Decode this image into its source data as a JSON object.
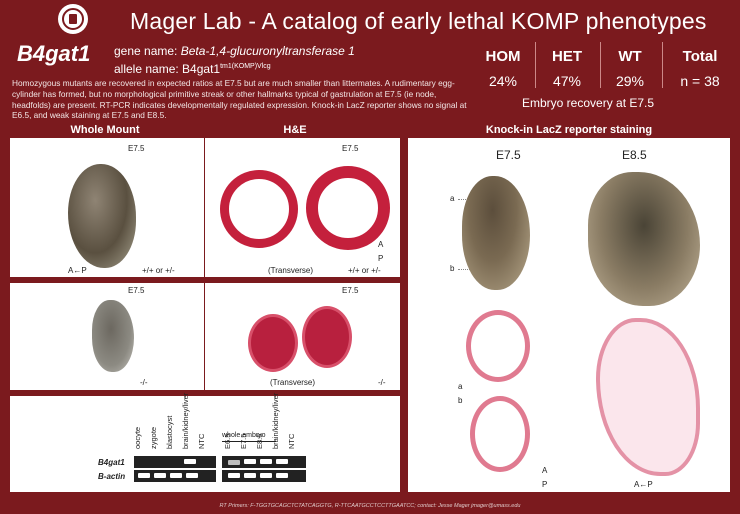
{
  "header": {
    "title": "Mager Lab - A catalog of early lethal KOMP phenotypes",
    "gene_symbol": "B4gat1",
    "gene_name_label": "gene name: ",
    "gene_name": "Beta-1,4-glucuronyltransferase 1",
    "allele_label": "allele name: B4gat1",
    "allele_sup": "tm1(KOMP)Vlcg",
    "description": "Homozygous mutants are recovered in expected ratios at E7.5 but are much smaller than littermates.  A rudimentary egg-cylinder has formed, but no morphological primitive streak or other hallmarks typical of gastrulation at E7.5 (ie node, headfolds) are present. RT-PCR indicates developmentally regulated expression.  Knock-in LacZ reporter shows no signal at E6.5, and weak staining at E7.5 and E8.5."
  },
  "stats": {
    "hom_label": "HOM",
    "hom_value": "24%",
    "het_label": "HET",
    "het_value": "47%",
    "wt_label": "WT",
    "wt_value": "29%",
    "total_label": "Total",
    "total_value": "n = 38",
    "recovery_caption": "Embryo recovery at E7.5"
  },
  "sections": {
    "whole_mount": "Whole Mount",
    "he": "H&E",
    "lacz": "Knock-in LacZ reporter staining"
  },
  "panels": {
    "wm_top_stage": "E7.5",
    "wm_top_axis": "A←P",
    "wm_top_genotype": "+/+ or +/-",
    "he_top_stage": "E7.5",
    "he_top_plane": "(Transverse)",
    "he_top_genotype": "+/+ or +/-",
    "he_top_axis_a": "A",
    "he_top_axis_p": "P",
    "wm_bot_stage": "E7.5",
    "wm_bot_genotype": "-/-",
    "he_bot_stage": "E7.5",
    "he_bot_plane": "(Transverse)",
    "he_bot_genotype": "-/-"
  },
  "gel": {
    "lanes1": [
      "oocyte",
      "zygote",
      "blastocyst",
      "brain/kidney/liver",
      "NTC"
    ],
    "group2": "whole embryo",
    "lanes2": [
      "E6.5",
      "E7.5",
      "E8.5",
      "brain/kidney/liver",
      "NTC"
    ],
    "row1": "B4gat1",
    "row2": "B-actin"
  },
  "lacz": {
    "e75": "E7.5",
    "e85": "E8.5",
    "label_a": "a",
    "label_b": "b",
    "sec_a": "a",
    "sec_b": "b",
    "axis_a": "A",
    "axis_p": "P",
    "axis_ap": "A←P"
  },
  "footer": "RT Primers: F-TGGTGCAGCTCTATCAGGTG, R-TTCAATGCCTCCTTGAATCC; contact: Jesse Mager jmager@umass.edu"
}
